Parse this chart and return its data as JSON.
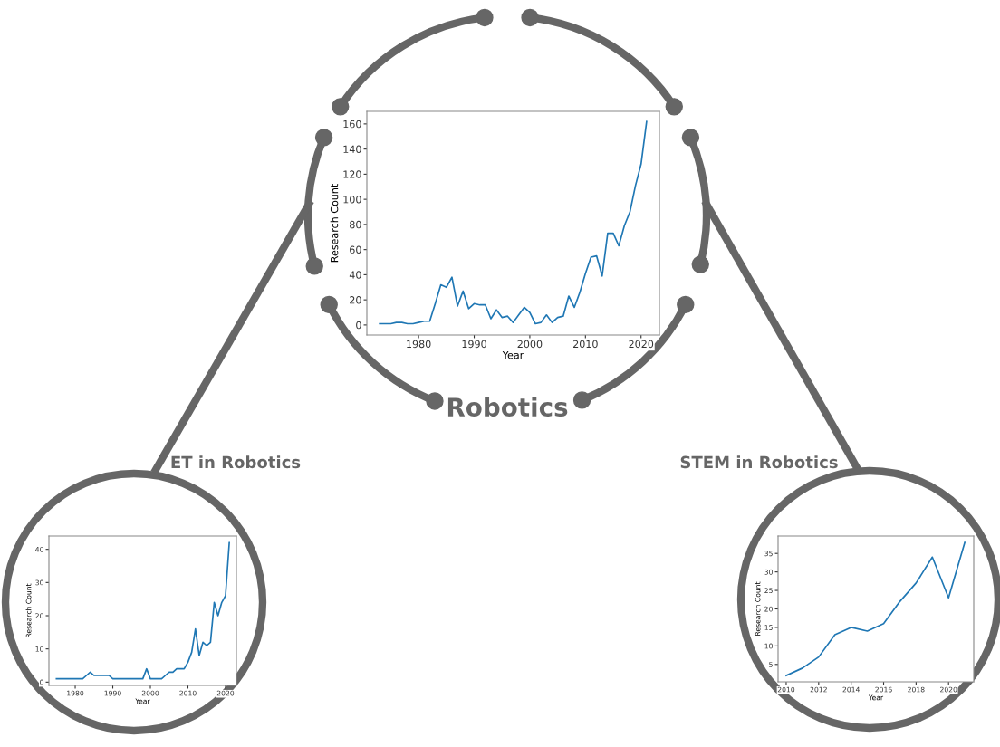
{
  "chart_data": [
    {
      "type": "line",
      "title": "Robotics",
      "xlabel": "Year",
      "ylabel": "Research Count",
      "x": [
        1973,
        1974,
        1975,
        1976,
        1977,
        1978,
        1979,
        1980,
        1981,
        1982,
        1983,
        1984,
        1985,
        1986,
        1987,
        1988,
        1989,
        1990,
        1991,
        1992,
        1993,
        1994,
        1995,
        1996,
        1997,
        1998,
        1999,
        2000,
        2001,
        2002,
        2003,
        2004,
        2005,
        2006,
        2007,
        2008,
        2009,
        2010,
        2011,
        2012,
        2013,
        2014,
        2015,
        2016,
        2017,
        2018,
        2019,
        2020,
        2021
      ],
      "series": [
        {
          "color": "#1f77b4",
          "values": [
            1,
            1,
            1,
            2,
            2,
            1,
            1,
            2,
            3,
            3,
            17,
            32,
            30,
            38,
            15,
            27,
            13,
            17,
            16,
            16,
            5,
            12,
            6,
            7,
            2,
            8,
            14,
            10,
            1,
            2,
            8,
            2,
            6,
            7,
            23,
            14,
            26,
            41,
            54,
            55,
            39,
            73,
            73,
            63,
            79,
            90,
            111,
            128,
            162
          ]
        }
      ],
      "xlim": [
        1970.7,
        2023.3
      ],
      "ylim": [
        -8,
        170
      ],
      "xticks": [
        1980,
        1990,
        2000,
        2010,
        2020
      ],
      "yticks": [
        0,
        20,
        40,
        60,
        80,
        100,
        120,
        140,
        160
      ],
      "grid": false,
      "legend": false
    },
    {
      "type": "line",
      "title": "ET in Robotics",
      "xlabel": "Year",
      "ylabel": "Research Count",
      "x": [
        1975,
        1976,
        1977,
        1978,
        1979,
        1980,
        1981,
        1982,
        1983,
        1984,
        1985,
        1986,
        1987,
        1988,
        1989,
        1990,
        1991,
        1992,
        1993,
        1994,
        1995,
        1996,
        1997,
        1998,
        1999,
        2000,
        2001,
        2002,
        2003,
        2004,
        2005,
        2006,
        2007,
        2008,
        2009,
        2010,
        2011,
        2012,
        2013,
        2014,
        2015,
        2016,
        2017,
        2018,
        2019,
        2020,
        2021
      ],
      "series": [
        {
          "color": "#1f77b4",
          "values": [
            1,
            1,
            1,
            1,
            1,
            1,
            1,
            1,
            2,
            3,
            2,
            2,
            2,
            2,
            2,
            1,
            1,
            1,
            1,
            1,
            1,
            1,
            1,
            1,
            4,
            1,
            1,
            1,
            1,
            2,
            3,
            3,
            4,
            4,
            4,
            6,
            9,
            16,
            8,
            12,
            11,
            12,
            24,
            20,
            24,
            26,
            42
          ]
        }
      ],
      "xlim": [
        1973,
        2022.9
      ],
      "ylim": [
        -1,
        44
      ],
      "xticks": [
        1980,
        1990,
        2000,
        2010,
        2020
      ],
      "yticks": [
        0,
        10,
        20,
        30,
        40
      ],
      "grid": false,
      "legend": false
    },
    {
      "type": "line",
      "title": "STEM in Robotics",
      "xlabel": "Year",
      "ylabel": "Research Count",
      "x": [
        2010,
        2011,
        2012,
        2013,
        2014,
        2015,
        2016,
        2017,
        2018,
        2019,
        2020,
        2021
      ],
      "series": [
        {
          "color": "#1f77b4",
          "values": [
            2,
            4,
            7,
            13,
            15,
            14,
            16,
            22,
            27,
            34,
            23,
            38
          ]
        }
      ],
      "xlim": [
        2009.5,
        2021.55
      ],
      "ylim": [
        0.3,
        39.7
      ],
      "xticks": [
        2010,
        2012,
        2014,
        2016,
        2018,
        2020
      ],
      "yticks": [
        5,
        10,
        15,
        20,
        25,
        30,
        35
      ],
      "grid": false,
      "legend": false
    }
  ]
}
